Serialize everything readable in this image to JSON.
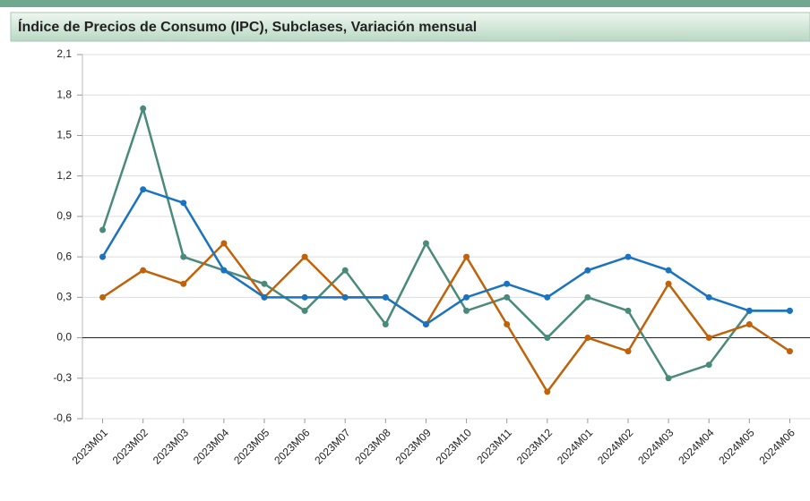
{
  "chart_data": {
    "type": "line",
    "title": "Índice de Precios de Consumo (IPC), Subclases, Variación mensual",
    "categories": [
      "2023M01",
      "2023M02",
      "2023M03",
      "2023M04",
      "2023M05",
      "2023M06",
      "2023M07",
      "2023M08",
      "2023M09",
      "2023M10",
      "2023M11",
      "2023M12",
      "2024M01",
      "2024M02",
      "2024M03",
      "2024M04",
      "2024M05",
      "2024M06"
    ],
    "series": [
      {
        "color": "#4a8a7a",
        "values": [
          0.8,
          1.7,
          0.6,
          0.5,
          0.4,
          0.2,
          0.5,
          0.1,
          0.7,
          0.2,
          0.3,
          0.0,
          0.3,
          0.2,
          -0.3,
          -0.2,
          0.2,
          0.2
        ]
      },
      {
        "color": "#c0620a",
        "values": [
          0.3,
          0.5,
          0.4,
          0.7,
          0.3,
          0.6,
          0.3,
          0.3,
          0.1,
          0.6,
          0.1,
          -0.4,
          0.0,
          -0.1,
          0.4,
          0.0,
          0.1,
          -0.1
        ]
      },
      {
        "color": "#1a73c0",
        "values": [
          0.6,
          1.1,
          1.0,
          0.5,
          0.3,
          0.3,
          0.3,
          0.3,
          0.1,
          0.3,
          0.4,
          0.3,
          0.5,
          0.6,
          0.5,
          0.3,
          0.2,
          0.2
        ]
      }
    ],
    "ylim": [
      -0.6,
      2.1
    ],
    "yticks": [
      {
        "value": -0.6,
        "label": "-0,6"
      },
      {
        "value": -0.3,
        "label": "-0,3"
      },
      {
        "value": 0,
        "label": "0,0"
      },
      {
        "value": 0.3,
        "label": "0,3"
      },
      {
        "value": 0.6,
        "label": "0,6"
      },
      {
        "value": 0.9,
        "label": "0,9"
      },
      {
        "value": 1.2,
        "label": "1,2"
      },
      {
        "value": 1.5,
        "label": "1,5"
      },
      {
        "value": 1.8,
        "label": "1,8"
      },
      {
        "value": 2.1,
        "label": "2,1"
      }
    ],
    "grid": true
  }
}
